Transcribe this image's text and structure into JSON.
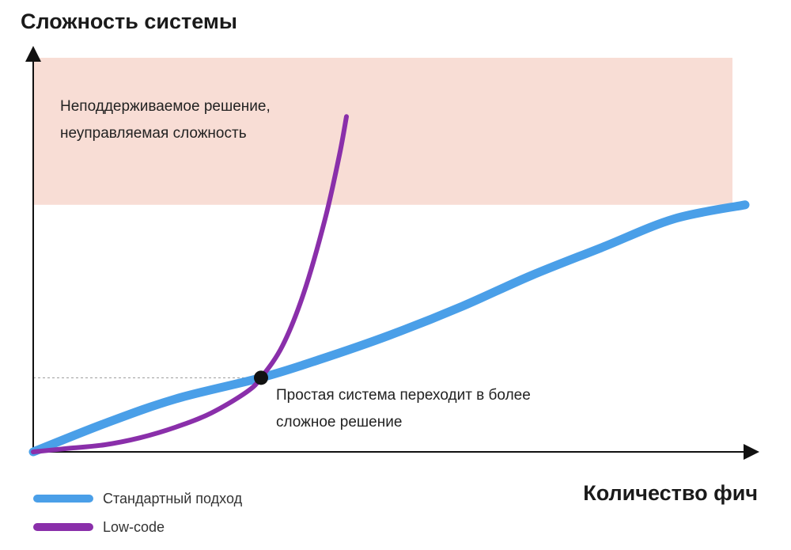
{
  "chart_data": {
    "type": "line",
    "ylabel": "Сложность системы",
    "xlabel": "Количество фич",
    "zone": {
      "text": "Неподдерживаемое решение, неуправляемая сложность",
      "color": "#f8ddd5",
      "y_range": [
        0.7,
        1.0
      ]
    },
    "annotation": {
      "text": "Простая система переходит в более сложное решение",
      "point": {
        "x": 0.32,
        "y": 0.21
      }
    },
    "xlim": [
      0,
      1
    ],
    "ylim": [
      0,
      1
    ],
    "series": [
      {
        "name": "Стандартный подход",
        "color": "#4a9fe8",
        "x": [
          0.0,
          0.1,
          0.2,
          0.32,
          0.4,
          0.5,
          0.6,
          0.7,
          0.8,
          0.9,
          1.0
        ],
        "y": [
          0.0,
          0.08,
          0.15,
          0.21,
          0.26,
          0.33,
          0.41,
          0.5,
          0.58,
          0.66,
          0.7
        ]
      },
      {
        "name": "Low-code",
        "color": "#8a2faa",
        "x": [
          0.0,
          0.05,
          0.1,
          0.15,
          0.2,
          0.25,
          0.3,
          0.32,
          0.35,
          0.38,
          0.41,
          0.43,
          0.44
        ],
        "y": [
          0.0,
          0.01,
          0.02,
          0.04,
          0.07,
          0.11,
          0.17,
          0.21,
          0.3,
          0.45,
          0.66,
          0.84,
          0.95
        ]
      }
    ]
  }
}
